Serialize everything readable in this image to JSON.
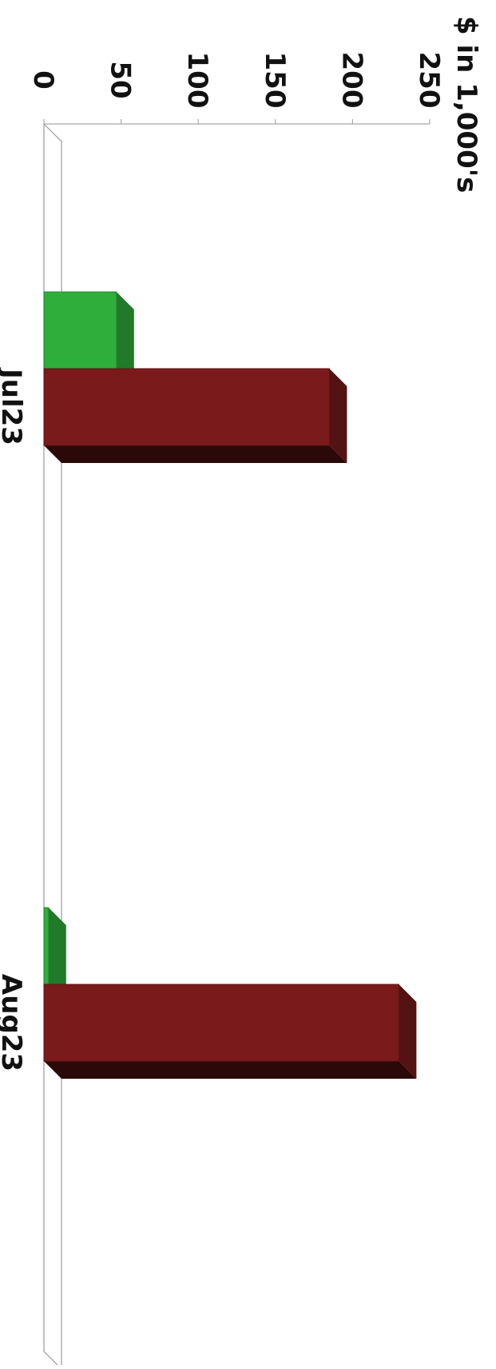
{
  "chart_data": {
    "type": "bar",
    "orientation": "horizontal-3d",
    "categories": [
      "Jul23",
      "Aug23"
    ],
    "series": [
      {
        "values": [
          47,
          3
        ],
        "color": "#2fae3b"
      },
      {
        "values": [
          185,
          230
        ],
        "color": "#7a1a1a"
      }
    ],
    "ylabel": "$ in 1,000's",
    "yticks": [
      "0",
      "50",
      "100",
      "150",
      "200",
      "250"
    ],
    "tick_values": [
      0,
      50,
      100,
      150,
      200,
      250
    ],
    "ylim": [
      0,
      250
    ],
    "grid": false,
    "legend": "none"
  }
}
